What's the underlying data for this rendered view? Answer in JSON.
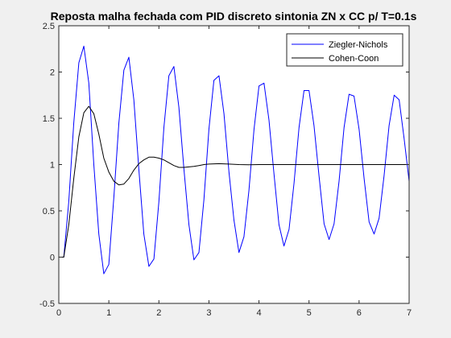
{
  "chart_data": {
    "type": "line",
    "title": "Reposta malha fechada com PID discreto sintonia ZN x CC p/ T=0.1s",
    "xlabel": "",
    "ylabel": "",
    "xlim": [
      0,
      7
    ],
    "ylim": [
      -0.5,
      2.5
    ],
    "xticks": [
      0,
      1,
      2,
      3,
      4,
      5,
      6,
      7
    ],
    "xtick_labels": [
      "0",
      "1",
      "2",
      "3",
      "4",
      "5",
      "6",
      "7"
    ],
    "yticks": [
      -0.5,
      0,
      0.5,
      1,
      1.5,
      2,
      2.5
    ],
    "ytick_labels": [
      "-0.5",
      "0",
      "0.5",
      "1",
      "1.5",
      "2",
      "2.5"
    ],
    "grid": false,
    "legend_position": "top-right",
    "series": [
      {
        "name": "Ziegler-Nichols",
        "color": "#0000ff",
        "x": [
          0,
          0.1,
          0.2,
          0.3,
          0.4,
          0.5,
          0.6,
          0.7,
          0.8,
          0.9,
          1.0,
          1.1,
          1.2,
          1.3,
          1.4,
          1.5,
          1.6,
          1.7,
          1.8,
          1.9,
          2.0,
          2.1,
          2.2,
          2.3,
          2.4,
          2.5,
          2.6,
          2.7,
          2.8,
          2.9,
          3.0,
          3.1,
          3.2,
          3.3,
          3.4,
          3.5,
          3.6,
          3.7,
          3.8,
          3.9,
          4.0,
          4.1,
          4.2,
          4.3,
          4.4,
          4.5,
          4.6,
          4.7,
          4.8,
          4.9,
          5.0,
          5.1,
          5.2,
          5.3,
          5.4,
          5.5,
          5.6,
          5.7,
          5.8,
          5.9,
          6.0,
          6.1,
          6.2,
          6.3,
          6.4,
          6.5,
          6.6,
          6.7,
          6.8,
          6.9,
          7.0
        ],
        "values": [
          0,
          0,
          0.6,
          1.45,
          2.1,
          2.28,
          1.88,
          1.0,
          0.25,
          -0.18,
          -0.08,
          0.65,
          1.45,
          2.02,
          2.16,
          1.7,
          0.95,
          0.25,
          -0.1,
          -0.02,
          0.6,
          1.4,
          1.96,
          2.06,
          1.62,
          0.95,
          0.35,
          -0.03,
          0.05,
          0.62,
          1.38,
          1.91,
          1.96,
          1.55,
          0.92,
          0.4,
          0.05,
          0.22,
          0.72,
          1.38,
          1.85,
          1.88,
          1.48,
          0.9,
          0.35,
          0.12,
          0.3,
          0.8,
          1.4,
          1.8,
          1.8,
          1.42,
          0.88,
          0.36,
          0.19,
          0.36,
          0.82,
          1.4,
          1.76,
          1.74,
          1.38,
          0.85,
          0.38,
          0.25,
          0.42,
          0.88,
          1.42,
          1.75,
          1.7,
          1.28,
          0.82
        ]
      },
      {
        "name": "Cohen-Coon",
        "color": "#000000",
        "x": [
          0,
          0.1,
          0.2,
          0.3,
          0.4,
          0.5,
          0.6,
          0.7,
          0.8,
          0.9,
          1.0,
          1.1,
          1.2,
          1.3,
          1.4,
          1.5,
          1.6,
          1.7,
          1.8,
          1.9,
          2.0,
          2.1,
          2.2,
          2.3,
          2.4,
          2.5,
          2.6,
          2.7,
          2.8,
          2.9,
          3.0,
          3.2,
          3.4,
          3.6,
          3.8,
          4.0,
          4.5,
          5.0,
          5.5,
          6.0,
          6.5,
          7.0
        ],
        "values": [
          0,
          0,
          0.35,
          0.85,
          1.3,
          1.56,
          1.63,
          1.55,
          1.33,
          1.07,
          0.92,
          0.82,
          0.78,
          0.79,
          0.85,
          0.94,
          1.01,
          1.05,
          1.08,
          1.08,
          1.07,
          1.05,
          1.02,
          0.99,
          0.97,
          0.97,
          0.975,
          0.98,
          0.99,
          1.0,
          1.005,
          1.01,
          1.005,
          1.0,
          0.998,
          1.0,
          1.0,
          1.0,
          1.0,
          1.0,
          1.0,
          1.0
        ]
      }
    ]
  }
}
